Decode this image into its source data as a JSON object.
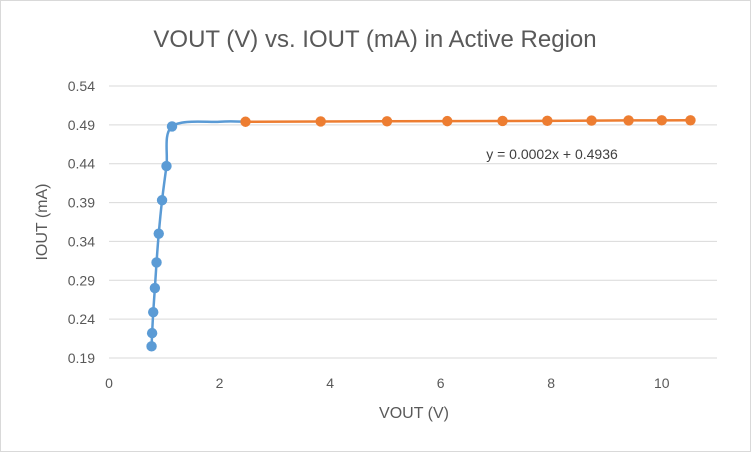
{
  "chart_data": {
    "type": "scatter",
    "title": "VOUT (V) vs. IOUT (mA) in Active Region",
    "xlabel": "VOUT (V)",
    "ylabel": "IOUT (mA)",
    "xlim": [
      0,
      11
    ],
    "ylim": [
      0.19,
      0.54
    ],
    "x_ticks": [
      0,
      2,
      4,
      6,
      8,
      10
    ],
    "y_ticks": [
      0.19,
      0.24,
      0.29,
      0.34,
      0.39,
      0.44,
      0.49,
      0.54
    ],
    "x_tick_labels": [
      "0",
      "2",
      "4",
      "6",
      "8",
      "10"
    ],
    "y_tick_labels": [
      "0.19",
      "0.24",
      "0.29",
      "0.34",
      "0.39",
      "0.44",
      "0.49",
      "0.54"
    ],
    "grid": "horizontal",
    "legend": "none",
    "series": [
      {
        "color": "#5b9bd5",
        "line": "smooth",
        "points": [
          {
            "x": 0.77,
            "y": 0.205
          },
          {
            "x": 0.78,
            "y": 0.222
          },
          {
            "x": 0.8,
            "y": 0.249
          },
          {
            "x": 0.83,
            "y": 0.28
          },
          {
            "x": 0.86,
            "y": 0.313
          },
          {
            "x": 0.9,
            "y": 0.35
          },
          {
            "x": 0.96,
            "y": 0.393
          },
          {
            "x": 1.04,
            "y": 0.437
          },
          {
            "x": 1.14,
            "y": 0.488
          },
          {
            "x": 2.0,
            "y": 0.494
          },
          {
            "x": 2.47,
            "y": 0.494
          }
        ],
        "marker_count": 9
      },
      {
        "color": "#ed7d31",
        "line": "straight",
        "points": [
          {
            "x": 2.47,
            "y": 0.494
          },
          {
            "x": 3.83,
            "y": 0.4944
          },
          {
            "x": 5.03,
            "y": 0.4946
          },
          {
            "x": 6.12,
            "y": 0.4948
          },
          {
            "x": 7.12,
            "y": 0.495
          },
          {
            "x": 7.93,
            "y": 0.4952
          },
          {
            "x": 8.73,
            "y": 0.4955
          },
          {
            "x": 9.4,
            "y": 0.4957
          },
          {
            "x": 10.0,
            "y": 0.4958
          },
          {
            "x": 10.52,
            "y": 0.4959
          }
        ]
      }
    ],
    "annotations": [
      {
        "text": "y = 0.0002x + 0.4936"
      }
    ]
  },
  "colors": {
    "title": "#595959",
    "axis_label": "#595959",
    "tick_label": "#595959",
    "gridline": "#d9d9d9",
    "annotation": "#404040"
  }
}
